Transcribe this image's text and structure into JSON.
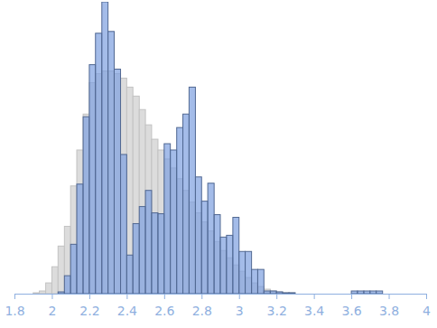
{
  "chart_data": {
    "type": "histogram",
    "bins": [
      1.9,
      1.933,
      1.967,
      2,
      2.033,
      2.067,
      2.1,
      2.133,
      2.167,
      2.2,
      2.233,
      2.267,
      2.3,
      2.333,
      2.367,
      2.4,
      2.433,
      2.467,
      2.5,
      2.533,
      2.567,
      2.6,
      2.633,
      2.667,
      2.7,
      2.733,
      2.767,
      2.8,
      2.833,
      2.867,
      2.9,
      2.933,
      2.967,
      3,
      3.033,
      3.067,
      3.1,
      3.133,
      3.167,
      3.2,
      3.233,
      3.267,
      3.3,
      3.333,
      3.367,
      3.4,
      3.433,
      3.467,
      3.5,
      3.533,
      3.567,
      3.6,
      3.633,
      3.667,
      3.7,
      3.733,
      3.767,
      3.8
    ],
    "series": [
      {
        "color": "#dcdcdc",
        "values": [
          1,
          3,
          12,
          30,
          53,
          75,
          120,
          160,
          200,
          235,
          245,
          248,
          248,
          245,
          240,
          230,
          220,
          205,
          188,
          172,
          160,
          150,
          140,
          128,
          115,
          102,
          90,
          80,
          70,
          58,
          48,
          40,
          32,
          25,
          18,
          12,
          8,
          5,
          3,
          2,
          1,
          1,
          0,
          0,
          0,
          0,
          0,
          0,
          0,
          0,
          0,
          0,
          0,
          0,
          0,
          0,
          0
        ]
      },
      {
        "color": "#7d9fe0",
        "values": [
          0,
          0,
          0,
          0,
          2,
          20,
          55,
          122,
          197,
          255,
          290,
          325,
          292,
          250,
          155,
          43,
          78,
          97,
          115,
          90,
          89,
          167,
          160,
          185,
          200,
          230,
          130,
          103,
          123,
          88,
          63,
          65,
          85,
          47,
          47,
          27,
          27,
          3,
          3,
          2,
          1,
          1,
          0,
          0,
          0,
          0,
          0,
          0,
          0,
          0,
          0,
          3,
          3,
          3,
          3,
          3,
          0
        ]
      }
    ],
    "xlim": [
      1.8,
      4
    ],
    "xticks": [
      1.8,
      2,
      2.2,
      2.4,
      2.6,
      2.8,
      3,
      3.2,
      3.4,
      3.6,
      3.8,
      4
    ],
    "ylim": [
      0,
      325
    ],
    "tick_labels": "x"
  }
}
